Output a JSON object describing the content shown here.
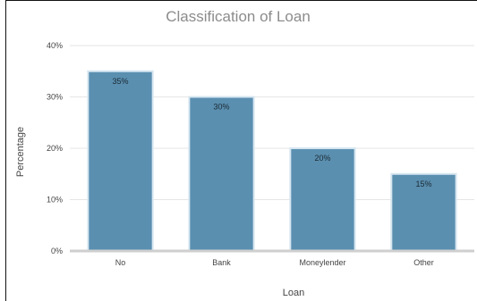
{
  "chart_data": {
    "type": "bar",
    "title": "Classification of Loan",
    "xlabel": "Loan",
    "ylabel": "Percentage",
    "categories": [
      "No",
      "Bank",
      "Moneylender",
      "Other"
    ],
    "values": [
      35,
      30,
      20,
      15
    ],
    "data_labels": [
      "35%",
      "30%",
      "20%",
      "15%"
    ],
    "ylim": [
      0,
      40
    ],
    "yticks": [
      0,
      10,
      20,
      30,
      40
    ],
    "ytick_labels": [
      "0%",
      "10%",
      "20%",
      "30%",
      "40%"
    ],
    "grid": true,
    "legend": "none",
    "colors": {
      "bar": "#5a8fb0",
      "bar_border": "#d6e6f0"
    }
  }
}
